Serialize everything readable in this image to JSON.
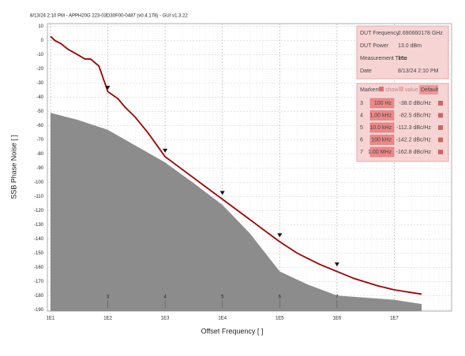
{
  "chart_data": {
    "type": "line",
    "title": "8/13/24 2:10 PM - APPH20G 223-03D30F00-0487 (v0.4.178) - GUI v1.3.22",
    "xlabel": "Offset Frequency [ ]",
    "ylabel": "SSB Phase Noise [ ]",
    "xscale": "log",
    "xlim": [
      10,
      100000000
    ],
    "ylim": [
      -191,
      12
    ],
    "xticks": [
      {
        "value": 10,
        "label": "1E1"
      },
      {
        "value": 100,
        "label": "1E2"
      },
      {
        "value": 1000,
        "label": "1E3"
      },
      {
        "value": 10000,
        "label": "1E4"
      },
      {
        "value": 100000,
        "label": "1E5"
      },
      {
        "value": 1000000,
        "label": "1E6"
      },
      {
        "value": 10000000,
        "label": "1E7"
      }
    ],
    "yticks": [
      10,
      0,
      -10,
      -20,
      -30,
      -40,
      -50,
      -60,
      -70,
      -80,
      -90,
      -100,
      -110,
      -120,
      -130,
      -140,
      -150,
      -160,
      -170,
      -180,
      -190
    ],
    "grid": true,
    "series": [
      {
        "kind": "area",
        "color": "#8c8c8c",
        "x": [
          10,
          30,
          100,
          300,
          1000,
          3000,
          10000,
          30000,
          100000,
          300000,
          1000000,
          10000000,
          30000000
        ],
        "values": [
          -51,
          -56,
          -63,
          -74,
          -86,
          -100,
          -116,
          -136,
          -163,
          -172,
          -180,
          -183,
          -186
        ]
      },
      {
        "kind": "line",
        "color": "#a00000",
        "x": [
          10,
          12,
          15,
          20,
          30,
          40,
          50,
          70,
          100,
          150,
          200,
          300,
          500,
          1000,
          2000,
          5000,
          10000,
          20000,
          50000,
          100000,
          200000,
          500000,
          1000000,
          2000000,
          5000000,
          10000000,
          30000000
        ],
        "values": [
          3,
          0,
          -2,
          -6,
          -10,
          -13,
          -13,
          -18,
          -36,
          -41,
          -47,
          -54,
          -65,
          -82,
          -91,
          -103,
          -112,
          -121,
          -133,
          -142,
          -150,
          -158,
          -163,
          -168,
          -173,
          -176,
          -179
        ]
      }
    ],
    "markers": {
      "title": "Markers",
      "show": "show",
      "value": "value",
      "default": "Default",
      "numbers": [
        "3",
        "4",
        "5",
        "6",
        "7"
      ],
      "offsets": [
        100,
        1000,
        10000,
        100000,
        1000000
      ],
      "offset_labels": [
        "100 Hz",
        "1.00 kHz",
        "10.0 kHz",
        "100 kHz",
        "1.00 MHz"
      ],
      "values": [
        -38,
        -82.5,
        -112.3,
        -142.2,
        -162.8
      ],
      "value_labels": [
        "-38.0 dBc/Hz",
        "-82.5 dBc/Hz",
        "-112.3 dBc/Hz",
        "-142.2 dBc/Hz",
        "-162.8 dBc/Hz"
      ]
    },
    "info": {
      "labels": [
        "DUT Frequency",
        "DUT Power",
        "Measurement Time",
        "Date"
      ],
      "values": [
        "2.690660178 GHz",
        "13.0 dBm",
        "16s",
        "8/13/24 2:10 PM"
      ]
    }
  }
}
